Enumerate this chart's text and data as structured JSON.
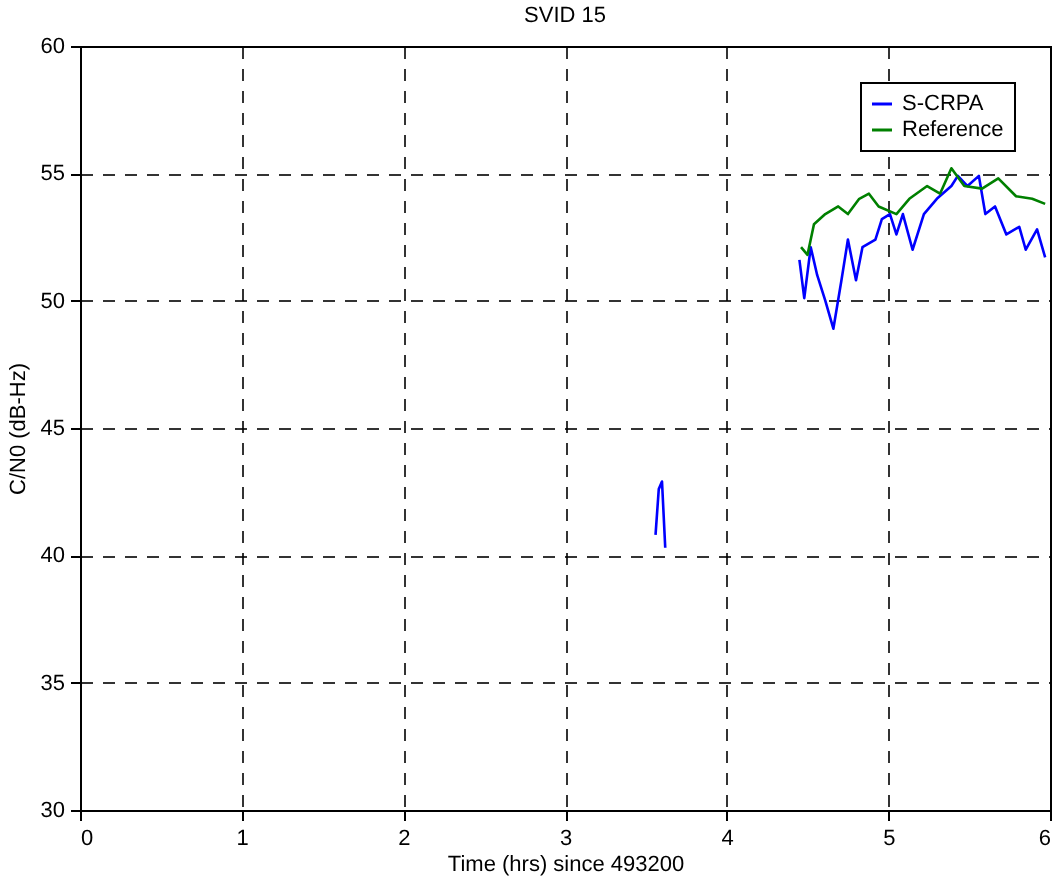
{
  "chart_data": {
    "type": "line",
    "title": "SVID 15",
    "xlabel": "Time (hrs) since 493200",
    "ylabel": "C/N0 (dB-Hz)",
    "xlim": [
      0,
      6
    ],
    "xticks": [
      0,
      1,
      2,
      3,
      4,
      5,
      6
    ],
    "ylim": [
      30,
      60
    ],
    "yticks": [
      30,
      35,
      40,
      45,
      50,
      55,
      60
    ],
    "grid": true,
    "legend": "top right",
    "line_style": "solid",
    "marker": "none",
    "series": [
      {
        "name": "S-CRPA",
        "color": "#0000ff",
        "x": [
          3.56,
          3.58,
          3.6,
          3.62,
          4.0,
          4.45,
          4.48,
          4.52,
          4.56,
          4.61,
          4.66,
          4.71,
          4.75,
          4.8,
          4.84,
          4.92,
          4.96,
          5.01,
          5.05,
          5.09,
          5.15,
          5.22,
          5.3,
          5.39,
          5.43,
          5.49,
          5.56,
          5.6,
          5.66,
          5.73,
          5.81,
          5.85,
          5.92,
          5.97
        ],
        "values": [
          40.8,
          42.6,
          42.9,
          40.3,
          null,
          51.6,
          50.1,
          52.1,
          51.0,
          50.0,
          48.9,
          50.8,
          52.4,
          50.8,
          52.1,
          52.4,
          53.2,
          53.4,
          52.6,
          53.4,
          52.0,
          53.4,
          54.0,
          54.5,
          54.9,
          54.5,
          54.9,
          53.4,
          53.7,
          52.6,
          52.9,
          52.0,
          52.8,
          51.7
        ]
      },
      {
        "name": "Reference",
        "color": "#008000",
        "x": [
          4.46,
          4.5,
          4.54,
          4.61,
          4.69,
          4.75,
          4.82,
          4.88,
          4.94,
          5.05,
          5.13,
          5.24,
          5.32,
          5.39,
          5.47,
          5.58,
          5.68,
          5.79,
          5.89,
          5.97
        ],
        "values": [
          52.1,
          51.8,
          53.0,
          53.4,
          53.7,
          53.4,
          54.0,
          54.2,
          53.7,
          53.4,
          54.0,
          54.5,
          54.2,
          55.2,
          54.5,
          54.4,
          54.8,
          54.1,
          54.0,
          53.8
        ]
      }
    ]
  }
}
